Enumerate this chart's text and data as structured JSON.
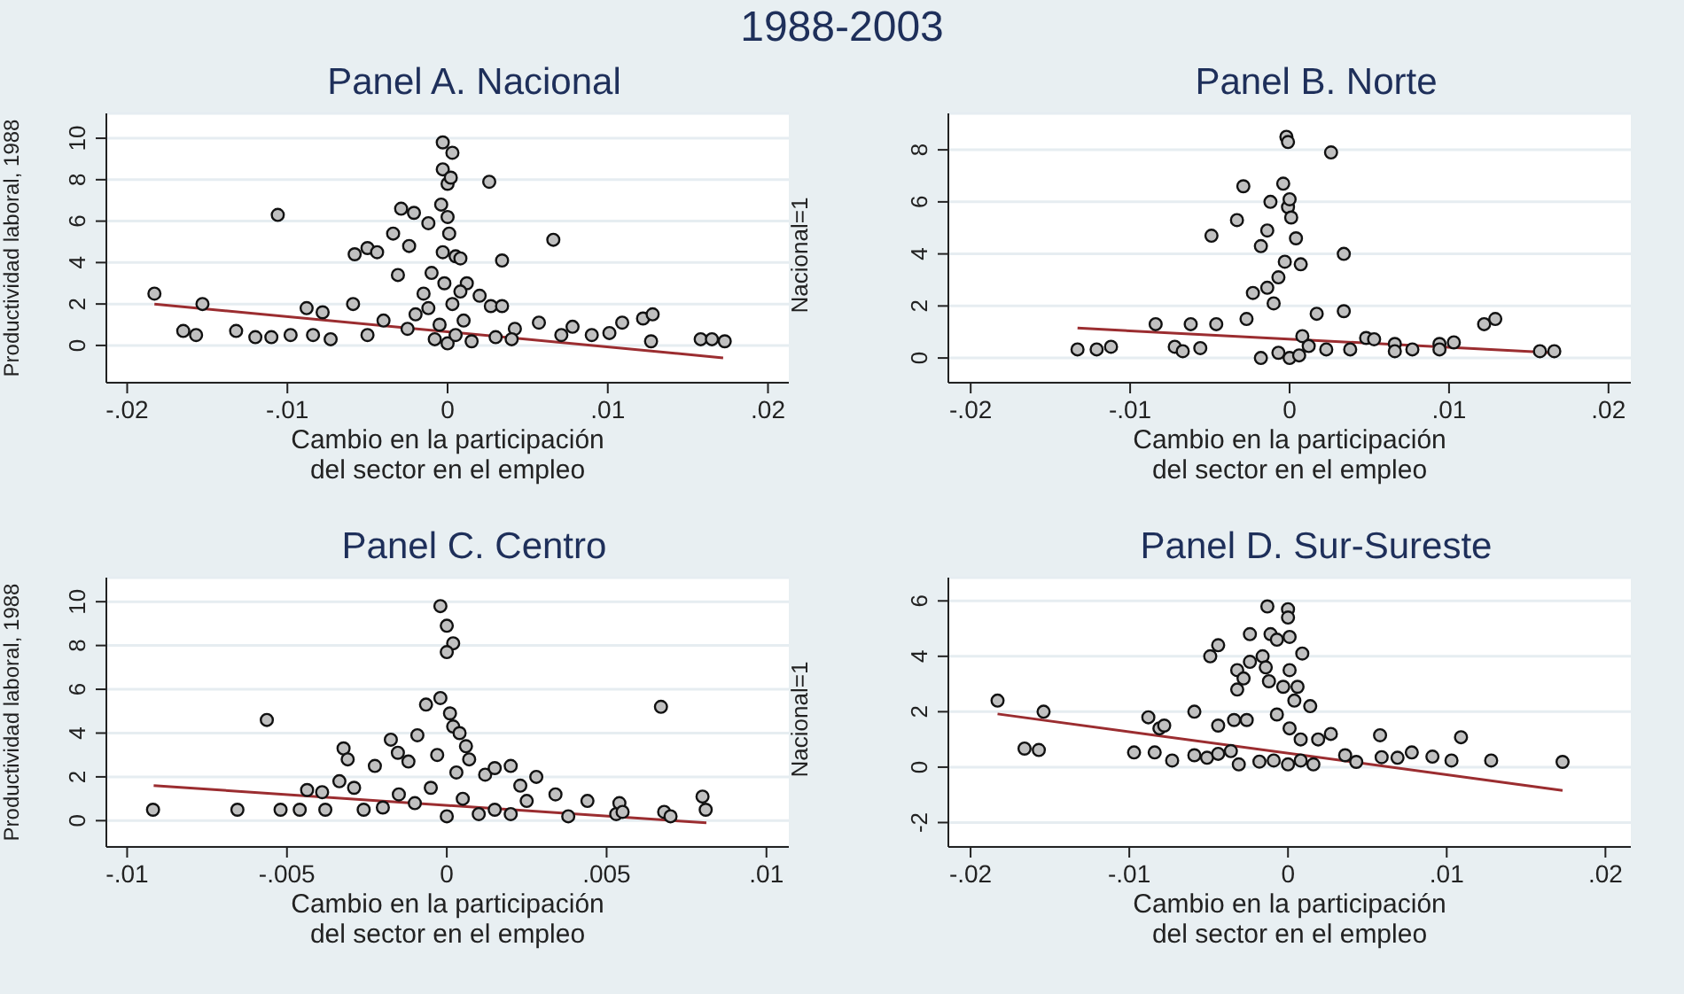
{
  "chart_data": [
    {
      "type": "scatter",
      "title": "Panel A. Nacional",
      "xlabel": "Cambio en la participación del sector en el empleo",
      "ylabel": "Productividad laboral, 1988",
      "y2label": "Nacional=1",
      "annotations": [
        "1988-2003"
      ],
      "xlim": [
        -0.0213,
        0.0213
      ],
      "ylim": [
        -1.8,
        11.2
      ],
      "xticks": [
        {
          "value": -0.02,
          "label": "-.02"
        },
        {
          "value": -0.01,
          "label": "-.01"
        },
        {
          "value": 0,
          "label": "0"
        },
        {
          "value": 0.01,
          "label": ".01"
        },
        {
          "value": 0.02,
          "label": ".02"
        }
      ],
      "yticks": [
        0,
        2,
        4,
        6,
        8,
        10
      ],
      "grid": "y",
      "series": [
        {
          "type": "scatter",
          "marker": "circle",
          "color": "#c0c0c0",
          "x": [
            -0.0183,
            -0.0165,
            -0.0157,
            -0.0153,
            -0.0132,
            -0.012,
            -0.011,
            -0.0106,
            -0.0098,
            -0.0088,
            -0.0084,
            -0.0078,
            -0.0073,
            -0.0059,
            -0.0058,
            -0.005,
            -0.0044,
            -0.0029,
            -0.0034,
            -0.0031,
            -0.0024,
            -0.0021,
            -0.0012,
            -0.0004,
            -0.0003,
            0.0003,
            -0.0003,
            0,
            0.0002,
            0,
            0.0001,
            0.0005,
            0.0008,
            0.0026,
            0.0034,
            0.0066,
            0.002,
            0.0027,
            0.0034,
            0.0042,
            0.0057,
            0.0071,
            0.0078,
            0.009,
            0.0101,
            0.0109,
            0.0122,
            0.0128,
            0.0127,
            0.0158,
            0.0165,
            0.0173,
            -0.002,
            -0.0015,
            -0.001,
            -0.0008,
            -0.0005,
            -0.0003,
            0,
            0.0003,
            0.0005,
            0.001,
            0.0012,
            0.0015,
            -0.0025,
            -0.004,
            -0.005,
            0.003,
            0.004,
            -0.0012,
            0.0008,
            -0.0002
          ],
          "values": [
            2.5,
            0.7,
            0.5,
            2.0,
            0.7,
            0.4,
            0.4,
            6.3,
            0.5,
            1.8,
            0.5,
            1.6,
            0.3,
            2.0,
            4.4,
            4.7,
            4.5,
            6.6,
            5.4,
            3.4,
            4.8,
            6.4,
            5.9,
            6.8,
            9.8,
            9.3,
            8.5,
            7.8,
            8.1,
            6.2,
            5.4,
            4.3,
            4.2,
            7.9,
            4.1,
            5.1,
            2.4,
            1.9,
            1.9,
            0.8,
            1.1,
            0.5,
            0.9,
            0.5,
            0.6,
            1.1,
            1.3,
            1.5,
            0.2,
            0.3,
            0.3,
            0.2,
            1.5,
            2.5,
            3.5,
            0.3,
            1.0,
            4.5,
            0.1,
            2.0,
            0.5,
            1.2,
            3.0,
            0.2,
            0.8,
            1.2,
            0.5,
            0.4,
            0.3,
            1.8,
            2.6,
            3.0
          ]
        },
        {
          "type": "line",
          "color": "#9b2d30",
          "x": [
            -0.0183,
            0.0172
          ],
          "values": [
            2.0,
            -0.6
          ]
        }
      ]
    },
    {
      "type": "scatter",
      "title": "Panel B. Norte",
      "xlabel": "Cambio en la participación del sector en el empleo",
      "xlim": [
        -0.0214,
        0.0214
      ],
      "ylim": [
        -0.95,
        9.4
      ],
      "xticks": [
        {
          "value": -0.02,
          "label": "-.02"
        },
        {
          "value": -0.01,
          "label": "-.01"
        },
        {
          "value": 0,
          "label": "0"
        },
        {
          "value": 0.01,
          "label": ".01"
        },
        {
          "value": 0.02,
          "label": ".02"
        }
      ],
      "yticks": [
        0,
        2,
        4,
        6,
        8
      ],
      "grid": "y",
      "series": [
        {
          "type": "scatter",
          "marker": "circle",
          "color": "#c0c0c0",
          "x": [
            -0.0133,
            -0.0121,
            -0.0112,
            -0.0084,
            -0.0072,
            -0.0067,
            -0.0062,
            -0.0056,
            -0.0049,
            -0.0046,
            -0.0033,
            -0.0029,
            -0.0027,
            -0.0023,
            -0.0018,
            -0.0014,
            -0.0012,
            -0.0004,
            -0.0002,
            -0.0001,
            -0.0001,
            0,
            0.0001,
            0.0004,
            0.0007,
            -0.0003,
            -0.0007,
            -0.001,
            -0.0014,
            0.0026,
            0.0034,
            0.0034,
            0.0017,
            0.0008,
            0.0023,
            0.0038,
            0.0048,
            0.0053,
            0.0066,
            0.0066,
            0.0077,
            0.0094,
            0.0094,
            0.0103,
            0.0122,
            0.0129,
            0.0157,
            0.0166,
            0,
            -0.0007,
            0.0006,
            -0.0018,
            0.0012
          ],
          "values": [
            0.33,
            0.33,
            0.43,
            1.3,
            0.43,
            0.26,
            1.3,
            0.38,
            4.7,
            1.3,
            5.3,
            6.6,
            1.5,
            2.5,
            4.3,
            4.9,
            6.0,
            6.7,
            8.5,
            8.3,
            5.8,
            6.1,
            5.4,
            4.6,
            3.6,
            3.7,
            3.1,
            2.1,
            2.7,
            7.9,
            4.0,
            1.8,
            1.7,
            0.84,
            0.33,
            0.33,
            0.77,
            0.72,
            0.54,
            0.26,
            0.33,
            0.54,
            0.33,
            0.6,
            1.3,
            1.5,
            0.26,
            0.26,
            0,
            0.2,
            0.1,
            0,
            0.46
          ]
        },
        {
          "type": "line",
          "color": "#9b2d30",
          "x": [
            -0.0133,
            0.0166
          ],
          "values": [
            1.15,
            0.2
          ]
        }
      ]
    },
    {
      "type": "scatter",
      "title": "Panel C. Centro",
      "xlabel": "Cambio en la participación del sector en el empleo",
      "ylabel": "Productividad laboral, 1988",
      "y2label": "Nacional=1",
      "xlim": [
        -0.01065,
        0.0107
      ],
      "ylim": [
        -1.2,
        11.1
      ],
      "xticks": [
        {
          "value": -0.01,
          "label": "-.01"
        },
        {
          "value": -0.005,
          "label": "-.005"
        },
        {
          "value": 0,
          "label": "0"
        },
        {
          "value": 0.005,
          "label": ".005"
        },
        {
          "value": 0.01,
          "label": ".01"
        }
      ],
      "yticks": [
        0,
        2,
        4,
        6,
        8,
        10
      ],
      "grid": "y",
      "series": [
        {
          "type": "scatter",
          "marker": "circle",
          "color": "#c0c0c0",
          "x": [
            -0.00919,
            -0.00655,
            -0.00563,
            -0.0052,
            -0.0046,
            -0.00437,
            -0.0039,
            -0.0038,
            -0.00336,
            -0.00323,
            -0.0031,
            -0.0029,
            -0.0026,
            -0.00225,
            -0.00175,
            -0.00153,
            -0.0012,
            -0.00092,
            -0.00065,
            -0.0002,
            -0.0002,
            0,
            0.0002,
            0,
            0.0001,
            0.0002,
            0.0004,
            0.0006,
            0.0007,
            0.0012,
            0.0015,
            0.002,
            0.0023,
            0.0028,
            0.0034,
            0.0038,
            0.0044,
            0.0053,
            0.0054,
            0.0055,
            0.0067,
            0.0068,
            0.007,
            0.008,
            0.0081,
            -0.001,
            -0.0005,
            0,
            0.0005,
            0.001,
            -0.0015,
            0.0015,
            -0.0003,
            0.0003,
            -0.002,
            0.002,
            0.0025
          ],
          "values": [
            0.5,
            0.5,
            4.6,
            0.5,
            0.5,
            1.4,
            1.3,
            0.5,
            1.8,
            3.3,
            2.8,
            1.5,
            0.5,
            2.5,
            3.7,
            3.1,
            2.7,
            3.9,
            5.3,
            5.6,
            9.8,
            8.9,
            8.1,
            7.7,
            4.9,
            4.3,
            4.0,
            3.4,
            2.8,
            2.1,
            2.4,
            2.5,
            1.6,
            2.0,
            1.2,
            0.2,
            0.9,
            0.3,
            0.8,
            0.4,
            5.2,
            0.4,
            0.2,
            1.1,
            0.5,
            0.8,
            1.5,
            0.2,
            1.0,
            0.3,
            1.2,
            0.5,
            3.0,
            2.2,
            0.6,
            0.3,
            0.9
          ]
        },
        {
          "type": "line",
          "color": "#9b2d30",
          "x": [
            -0.00917,
            0.00812
          ],
          "values": [
            1.6,
            -0.1
          ]
        }
      ]
    },
    {
      "type": "scatter",
      "title": "Panel D. Sur-Sureste",
      "xlabel": "Cambio en la participación del sector en el empleo",
      "xlim": [
        -0.0214,
        0.0216
      ],
      "ylim": [
        -2.88,
        6.84
      ],
      "xticks": [
        {
          "value": -0.02,
          "label": "-.02"
        },
        {
          "value": -0.01,
          "label": "-.01"
        },
        {
          "value": 0,
          "label": "0"
        },
        {
          "value": 0.01,
          "label": ".01"
        },
        {
          "value": 0.02,
          "label": ".02"
        }
      ],
      "yticks": [
        -2,
        0,
        2,
        4,
        6
      ],
      "grid": "y",
      "series": [
        {
          "type": "scatter",
          "marker": "circle",
          "color": "#c0c0c0",
          "x": [
            -0.0183,
            -0.0166,
            -0.0157,
            -0.0154,
            -0.0097,
            -0.0088,
            -0.0084,
            -0.0081,
            -0.0078,
            -0.0073,
            -0.0059,
            -0.0059,
            -0.0051,
            -0.0049,
            -0.0044,
            -0.0044,
            -0.0044,
            -0.0036,
            -0.0034,
            -0.0032,
            -0.0032,
            -0.0028,
            -0.0026,
            -0.0024,
            -0.0024,
            -0.0016,
            -0.0013,
            -0.0011,
            -0.0014,
            -0.0012,
            -0.0007,
            0,
            0,
            0.0001,
            0.0009,
            0.0001,
            -0.0003,
            0.0006,
            0.0004,
            0.0014,
            -0.0007,
            0.0001,
            0.0008,
            0.0019,
            0.0027,
            0.0036,
            0.0043,
            0.0058,
            0.0059,
            0.0069,
            0.0078,
            0.0091,
            0.0103,
            0.0109,
            0.0128,
            0.0173,
            -0.0031,
            -0.0018,
            -0.0009,
            0,
            0.0008,
            0.0016
          ],
          "values": [
            2.4,
            0.67,
            0.62,
            2.0,
            0.53,
            1.8,
            0.53,
            1.4,
            1.5,
            0.24,
            2.0,
            0.43,
            0.34,
            4.0,
            4.4,
            1.5,
            0.48,
            0.58,
            1.7,
            3.5,
            2.8,
            3.2,
            1.7,
            4.8,
            3.8,
            4.0,
            5.8,
            4.8,
            3.6,
            3.1,
            4.6,
            5.7,
            5.4,
            4.7,
            4.1,
            3.5,
            2.9,
            2.9,
            2.4,
            2.2,
            1.9,
            1.4,
            1.0,
            1.0,
            1.2,
            0.43,
            0.19,
            1.15,
            0.36,
            0.34,
            0.53,
            0.38,
            0.24,
            1.08,
            0.24,
            0.19,
            0.1,
            0.2,
            0.24,
            0.1,
            0.24,
            0.1
          ]
        },
        {
          "type": "line",
          "color": "#9b2d30",
          "x": [
            -0.0183,
            0.0173
          ],
          "values": [
            1.92,
            -0.84
          ]
        }
      ]
    }
  ]
}
